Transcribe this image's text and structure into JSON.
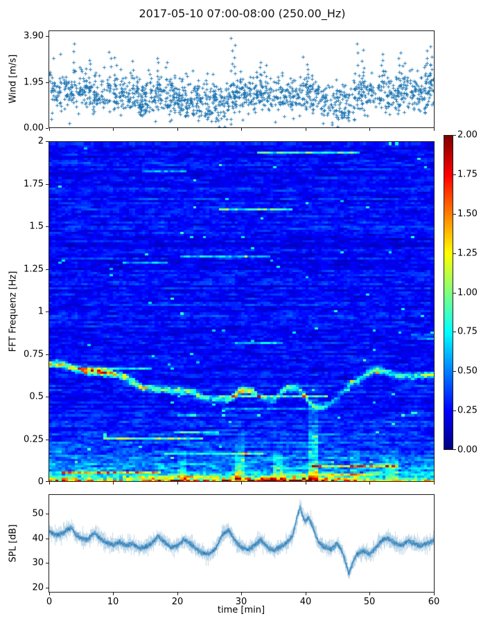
{
  "title": "2017-05-10 07:00-08:00 (250.00_Hz)",
  "colors": {
    "series_blue": "#1f77b4",
    "spine": "#1a1a1a",
    "colorbar_bottom": "#000080",
    "colorbar_top": "#800000"
  },
  "chart_data": [
    {
      "type": "scatter",
      "name": "wind-speed",
      "ylabel": "Wind [m/s]",
      "marker": "+",
      "color": "#1f77b4",
      "xlim": [
        0,
        60
      ],
      "ylim": [
        0,
        4.15
      ],
      "ytick_labels": [
        "0.00",
        "1.95",
        "3.90"
      ],
      "ytick_values": [
        0,
        1.95,
        3.9
      ],
      "xtick_values": [
        0,
        10,
        20,
        30,
        40,
        50,
        60
      ],
      "n_points": 1500,
      "std": 0.42,
      "envelope": [
        [
          0,
          1.5
        ],
        [
          4,
          1.55
        ],
        [
          8,
          1.4
        ],
        [
          12,
          1.45
        ],
        [
          16,
          1.3
        ],
        [
          20,
          1.3
        ],
        [
          23,
          1.2
        ],
        [
          25,
          1.05
        ],
        [
          27,
          1.1
        ],
        [
          29,
          1.45
        ],
        [
          31,
          1.5
        ],
        [
          34,
          1.45
        ],
        [
          38,
          1.4
        ],
        [
          42,
          1.3
        ],
        [
          44,
          1.1
        ],
        [
          46,
          1.0
        ],
        [
          48,
          1.3
        ],
        [
          50,
          1.5
        ],
        [
          52,
          1.55
        ],
        [
          56,
          1.45
        ],
        [
          60,
          1.6
        ]
      ],
      "spikes": [
        [
          3.9,
          3.65
        ],
        [
          6.3,
          2.9
        ],
        [
          9.5,
          3.3
        ],
        [
          10.3,
          3.1
        ],
        [
          13.0,
          2.8
        ],
        [
          17.0,
          3.0
        ],
        [
          18.2,
          2.9
        ],
        [
          28.5,
          3.85
        ],
        [
          28.8,
          3.5
        ],
        [
          33.0,
          2.9
        ],
        [
          40.2,
          2.8
        ],
        [
          48.2,
          3.7
        ],
        [
          48.9,
          3.4
        ],
        [
          52.0,
          3.2
        ],
        [
          54.7,
          3.3
        ],
        [
          58.8,
          3.3
        ],
        [
          59.5,
          3.5
        ]
      ],
      "low_clusters": [
        [
          25.5,
          2.2,
          0.55
        ],
        [
          45.8,
          2.5,
          0.6
        ],
        [
          14.5,
          1.5,
          0.8
        ],
        [
          21.0,
          1.2,
          0.7
        ]
      ]
    },
    {
      "type": "heatmap",
      "name": "fft-spectrogram",
      "ylabel": "FFT Frequenz [Hz]",
      "xlim": [
        0,
        60
      ],
      "ylim": [
        0,
        2
      ],
      "ytick_labels": [
        "2",
        "1.75",
        "1.5",
        "1.25",
        "1",
        "0.75",
        "0.5",
        "0.25",
        "0"
      ],
      "ytick_values": [
        2,
        1.75,
        1.5,
        1.25,
        1,
        0.75,
        0.5,
        0.25,
        0
      ],
      "xtick_values": [
        0,
        10,
        20,
        30,
        40,
        50,
        60
      ],
      "colormap": "jet",
      "vmin": 0,
      "vmax": 2,
      "grid": {
        "cols": 120,
        "rows": 160
      },
      "base_level": 0.2,
      "low_freq_boost": 0.5,
      "ridge_points": [
        [
          0,
          0.7,
          1.2
        ],
        [
          2,
          0.69,
          1.3
        ],
        [
          4,
          0.67,
          1.2
        ],
        [
          6,
          0.655,
          1.7
        ],
        [
          8,
          0.65,
          1.8
        ],
        [
          9.5,
          0.64,
          1.5
        ],
        [
          11,
          0.63,
          1.2
        ],
        [
          13,
          0.6,
          1.0
        ],
        [
          14.5,
          0.56,
          1.2
        ],
        [
          16,
          0.55,
          1.1
        ],
        [
          18,
          0.545,
          0.8
        ],
        [
          20,
          0.54,
          0.9
        ],
        [
          22,
          0.535,
          0.9
        ],
        [
          24,
          0.5,
          0.8
        ],
        [
          26,
          0.49,
          0.7
        ],
        [
          28,
          0.48,
          0.8
        ],
        [
          30,
          0.545,
          1.3
        ],
        [
          31.5,
          0.54,
          1.2
        ],
        [
          33,
          0.5,
          0.7
        ],
        [
          35,
          0.48,
          0.5
        ],
        [
          37,
          0.56,
          0.8
        ],
        [
          39,
          0.555,
          0.8
        ],
        [
          41,
          0.45,
          0.9
        ],
        [
          43,
          0.44,
          0.5
        ],
        [
          45,
          0.5,
          0.4
        ],
        [
          47,
          0.58,
          0.6
        ],
        [
          49,
          0.62,
          0.8
        ],
        [
          51,
          0.665,
          1.0
        ],
        [
          53,
          0.64,
          0.8
        ],
        [
          55,
          0.625,
          0.7
        ],
        [
          57,
          0.62,
          0.6
        ],
        [
          59,
          0.63,
          1.0
        ],
        [
          60,
          0.63,
          1.0
        ]
      ],
      "bottom_band": [
        [
          0,
          1.25
        ],
        [
          3,
          1.4
        ],
        [
          6,
          1.2
        ],
        [
          9,
          1.1
        ],
        [
          12,
          1.15
        ],
        [
          15,
          1.2
        ],
        [
          17,
          1.5
        ],
        [
          19,
          1.6
        ],
        [
          21,
          1.3
        ],
        [
          24,
          1.3
        ],
        [
          26,
          1.6
        ],
        [
          28,
          1.7
        ],
        [
          30,
          1.5
        ],
        [
          33,
          1.85
        ],
        [
          35,
          1.95
        ],
        [
          37,
          2.0
        ],
        [
          39,
          2.0
        ],
        [
          41,
          1.8
        ],
        [
          43,
          1.7
        ],
        [
          45,
          1.6
        ],
        [
          47,
          1.3
        ],
        [
          49,
          1.2
        ],
        [
          51,
          1.0
        ],
        [
          53,
          0.9
        ],
        [
          55,
          1.0
        ],
        [
          57,
          1.1
        ],
        [
          59,
          0.9
        ],
        [
          60,
          0.9
        ]
      ],
      "vertical_events": [
        [
          20.6,
          0.22,
          0.45
        ],
        [
          29.7,
          0.32,
          0.55
        ],
        [
          35.8,
          0.25,
          0.5
        ],
        [
          41.2,
          0.55,
          0.7
        ],
        [
          47.6,
          0.22,
          0.5
        ],
        [
          53.5,
          0.2,
          0.4
        ]
      ],
      "colorbar": {
        "tick_labels": [
          "2.00",
          "1.75",
          "1.50",
          "1.25",
          "1.00",
          "0.75",
          "0.50",
          "0.25",
          "0.00"
        ],
        "tick_values": [
          2,
          1.75,
          1.5,
          1.25,
          1,
          0.75,
          0.5,
          0.25,
          0
        ]
      }
    },
    {
      "type": "line",
      "name": "spl",
      "ylabel": "SPL [dB]",
      "xlabel": "time [min]",
      "color": "#1f77b4",
      "xlim": [
        0,
        60
      ],
      "ylim": [
        18,
        58
      ],
      "ytick_labels": [
        "20",
        "30",
        "40",
        "50"
      ],
      "ytick_values": [
        20,
        30,
        40,
        50
      ],
      "xtick_labels": [
        "0",
        "10",
        "20",
        "30",
        "40",
        "50",
        "60"
      ],
      "xtick_values": [
        0,
        10,
        20,
        30,
        40,
        50,
        60
      ],
      "noise_amp": 2.8,
      "midline": [
        [
          0,
          43
        ],
        [
          1,
          41.5
        ],
        [
          2,
          42
        ],
        [
          3,
          44
        ],
        [
          3.5,
          44.5
        ],
        [
          4,
          42
        ],
        [
          5,
          40
        ],
        [
          6,
          39.5
        ],
        [
          7,
          42.5
        ],
        [
          8,
          40
        ],
        [
          9,
          38
        ],
        [
          10,
          37.5
        ],
        [
          11,
          38.5
        ],
        [
          12,
          37
        ],
        [
          13,
          38
        ],
        [
          14,
          36
        ],
        [
          15,
          36.5
        ],
        [
          16,
          38
        ],
        [
          17,
          41
        ],
        [
          18,
          38.5
        ],
        [
          19,
          36.5
        ],
        [
          20,
          37
        ],
        [
          21,
          39.5
        ],
        [
          22,
          38
        ],
        [
          23,
          35.5
        ],
        [
          24,
          34
        ],
        [
          25,
          33.5
        ],
        [
          26,
          36
        ],
        [
          27,
          41.5
        ],
        [
          28,
          43.5
        ],
        [
          29,
          39
        ],
        [
          30,
          36.5
        ],
        [
          31,
          35.5
        ],
        [
          32,
          37
        ],
        [
          33,
          39.5
        ],
        [
          34,
          36.5
        ],
        [
          35,
          35
        ],
        [
          36,
          36.5
        ],
        [
          37,
          38
        ],
        [
          38,
          41
        ],
        [
          38.8,
          50
        ],
        [
          39.2,
          53
        ],
        [
          39.6,
          49
        ],
        [
          40,
          47
        ],
        [
          40.5,
          48.5
        ],
        [
          41,
          46
        ],
        [
          41.5,
          42
        ],
        [
          42,
          38.5
        ],
        [
          43,
          36.5
        ],
        [
          44,
          35.5
        ],
        [
          45,
          38
        ],
        [
          45.7,
          35
        ],
        [
          46.3,
          30
        ],
        [
          46.8,
          25.5
        ],
        [
          47.3,
          29
        ],
        [
          48,
          33.5
        ],
        [
          49,
          35
        ],
        [
          50,
          33.5
        ],
        [
          51,
          36
        ],
        [
          52,
          39.5
        ],
        [
          53,
          40
        ],
        [
          54,
          38
        ],
        [
          55,
          37
        ],
        [
          56,
          39
        ],
        [
          57,
          38
        ],
        [
          58,
          37
        ],
        [
          59,
          38
        ],
        [
          60,
          39
        ]
      ]
    }
  ]
}
